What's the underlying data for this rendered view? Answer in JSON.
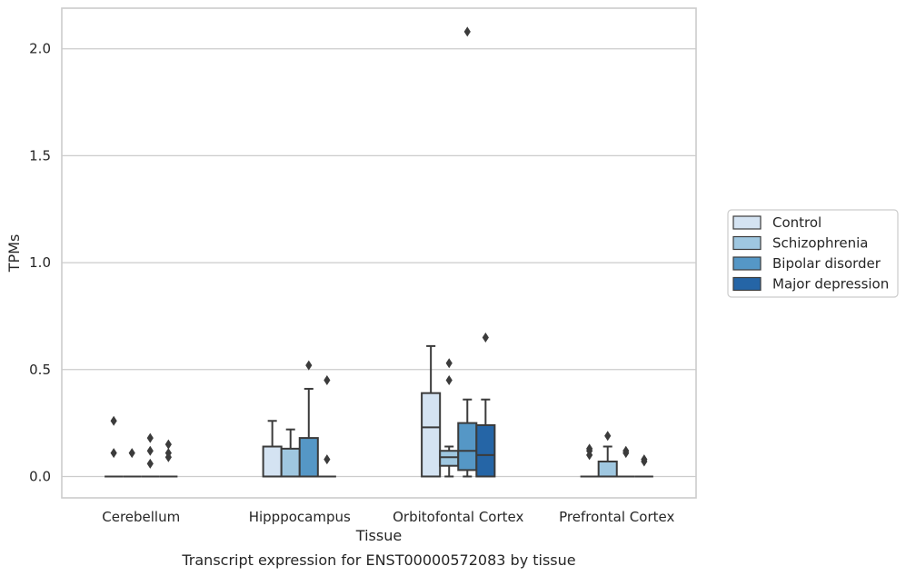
{
  "chart_data": {
    "type": "box",
    "xlabel": "Tissue",
    "ylabel": "TPMs",
    "caption": "Transcript expression for ENST00000572083 by tissue",
    "ylim": [
      -0.1,
      2.19
    ],
    "yticks": [
      0.0,
      0.5,
      1.0,
      1.5,
      2.0
    ],
    "ytick_labels": [
      "0.0",
      "0.5",
      "1.0",
      "1.5",
      "2.0"
    ],
    "grid": "horizontal",
    "legend_position": "right",
    "categories": [
      "Cerebellum",
      "Hipppocampus",
      "Orbitofontal Cortex",
      "Prefrontal Cortex"
    ],
    "series": [
      {
        "name": "Control",
        "color": "#d4e3f2",
        "boxes": [
          {
            "q1": 0,
            "median": 0,
            "q3": 0,
            "whisker_low": 0,
            "whisker_high": 0,
            "outliers": [
              0.26,
              0.11
            ]
          },
          {
            "q1": 0,
            "median": 0,
            "q3": 0.14,
            "whisker_low": 0,
            "whisker_high": 0.26,
            "outliers": []
          },
          {
            "q1": 0,
            "median": 0.23,
            "q3": 0.39,
            "whisker_low": 0,
            "whisker_high": 0.61,
            "outliers": []
          },
          {
            "q1": 0,
            "median": 0,
            "q3": 0,
            "whisker_low": 0,
            "whisker_high": 0,
            "outliers": [
              0.13,
              0.12,
              0.1
            ]
          }
        ]
      },
      {
        "name": "Schizophrenia",
        "color": "#9fc7e0",
        "boxes": [
          {
            "q1": 0,
            "median": 0,
            "q3": 0,
            "whisker_low": 0,
            "whisker_high": 0,
            "outliers": [
              0.11
            ]
          },
          {
            "q1": 0,
            "median": 0,
            "q3": 0.13,
            "whisker_low": 0,
            "whisker_high": 0.22,
            "outliers": []
          },
          {
            "q1": 0.05,
            "median": 0.09,
            "q3": 0.12,
            "whisker_low": 0,
            "whisker_high": 0.14,
            "outliers": [
              0.53,
              0.45
            ]
          },
          {
            "q1": 0,
            "median": 0,
            "q3": 0.07,
            "whisker_low": 0,
            "whisker_high": 0.14,
            "outliers": [
              0.19
            ]
          }
        ]
      },
      {
        "name": "Bipolar disorder",
        "color": "#5597c6",
        "boxes": [
          {
            "q1": 0,
            "median": 0,
            "q3": 0,
            "whisker_low": 0,
            "whisker_high": 0,
            "outliers": [
              0.18,
              0.12,
              0.06
            ]
          },
          {
            "q1": 0,
            "median": 0,
            "q3": 0.18,
            "whisker_low": 0,
            "whisker_high": 0.41,
            "outliers": [
              0.52
            ]
          },
          {
            "q1": 0.03,
            "median": 0.12,
            "q3": 0.25,
            "whisker_low": 0,
            "whisker_high": 0.36,
            "outliers": [
              2.08
            ]
          },
          {
            "q1": 0,
            "median": 0,
            "q3": 0,
            "whisker_low": 0,
            "whisker_high": 0,
            "outliers": [
              0.12,
              0.11
            ]
          }
        ]
      },
      {
        "name": "Major depression",
        "color": "#2565a6",
        "boxes": [
          {
            "q1": 0,
            "median": 0,
            "q3": 0,
            "whisker_low": 0,
            "whisker_high": 0,
            "outliers": [
              0.15,
              0.11,
              0.09
            ]
          },
          {
            "q1": 0,
            "median": 0,
            "q3": 0,
            "whisker_low": 0,
            "whisker_high": 0,
            "outliers": [
              0.45,
              0.08
            ]
          },
          {
            "q1": 0,
            "median": 0.1,
            "q3": 0.24,
            "whisker_low": 0,
            "whisker_high": 0.36,
            "outliers": [
              0.65
            ]
          },
          {
            "q1": 0,
            "median": 0,
            "q3": 0,
            "whisker_low": 0,
            "whisker_high": 0,
            "outliers": [
              0.08,
              0.07
            ]
          }
        ]
      }
    ]
  },
  "colors": {
    "grid": "#cccccc",
    "frame": "#cccccc",
    "line": "#3b3b3b"
  }
}
